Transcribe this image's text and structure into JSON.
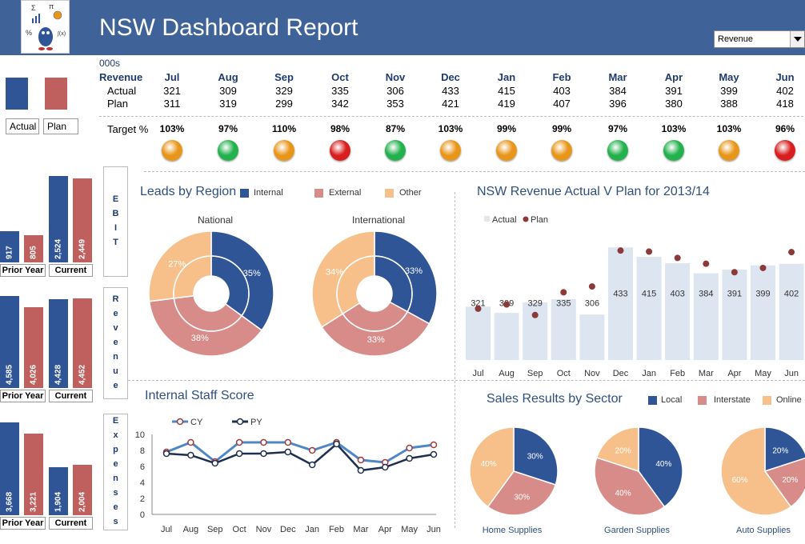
{
  "header": {
    "title": "NSW Dashboard Report",
    "dropdown_value": "Revenue",
    "logo_symbols": [
      "Σ",
      "π",
      "%",
      "∫(x)"
    ]
  },
  "colors": {
    "header_bg": "#3F6298",
    "actual_blue": "#2F5597",
    "plan_red": "#C0605E",
    "internal": "#2F5597",
    "external": "#D88C8A",
    "other": "#F7C08A",
    "bar_light": "#DDE5F0",
    "amber": "#E8961A",
    "green": "#22B14C",
    "red": "#D81E1E"
  },
  "table": {
    "units": "000s",
    "revenue_label": "Revenue",
    "actual_label": "Actual",
    "plan_label": "Plan",
    "target_label": "Target %",
    "months": [
      "Jul",
      "Aug",
      "Sep",
      "Oct",
      "Nov",
      "Dec",
      "Jan",
      "Feb",
      "Mar",
      "Apr",
      "May",
      "Jun"
    ],
    "actual": [
      "321",
      "309",
      "329",
      "335",
      "306",
      "433",
      "415",
      "403",
      "384",
      "391",
      "399",
      "402"
    ],
    "plan": [
      "311",
      "319",
      "299",
      "342",
      "353",
      "421",
      "419",
      "407",
      "396",
      "380",
      "388",
      "418"
    ],
    "target": [
      "103%",
      "97%",
      "110%",
      "98%",
      "87%",
      "103%",
      "99%",
      "99%",
      "97%",
      "103%",
      "103%",
      "96%"
    ],
    "status": [
      "amber",
      "green",
      "amber",
      "red",
      "green",
      "amber",
      "amber",
      "amber",
      "green",
      "green",
      "amber",
      "red"
    ]
  },
  "legend": {
    "actual": "Actual",
    "plan": "Plan"
  },
  "kpis": [
    {
      "side_label": "EBIT",
      "prior_value": "917",
      "current_actual": "2,524",
      "current_plan": "2,449",
      "prior_plan": "805",
      "prior_label": "Prior Year",
      "current_label": "Current"
    },
    {
      "side_label": "Revenue",
      "prior_value": "4,585",
      "prior_plan": "4,026",
      "current_actual": "4,428",
      "current_plan": "4,452",
      "prior_label": "Prior Year",
      "current_label": "Current"
    },
    {
      "side_label": "Expenses",
      "prior_value": "3,668",
      "prior_plan": "3,221",
      "current_actual": "1,904",
      "current_plan": "2,004",
      "prior_label": "Prior Year",
      "current_label": "Current"
    }
  ],
  "leads": {
    "title": "Leads by Region",
    "legend": [
      "Internal",
      "External",
      "Other"
    ],
    "charts": [
      {
        "label": "National",
        "slices": [
          35,
          38,
          27
        ],
        "labels": [
          "35%",
          "38%",
          "27%"
        ]
      },
      {
        "label": "International",
        "slices": [
          33,
          33,
          34
        ],
        "labels": [
          "33%",
          "33%",
          "34%"
        ]
      }
    ]
  },
  "chart_data": [
    {
      "type": "bar",
      "title": "NSW Revenue Actual V Plan for 2013/14",
      "categories": [
        "Jul",
        "Aug",
        "Sep",
        "Oct",
        "Nov",
        "Dec",
        "Jan",
        "Feb",
        "Mar",
        "Apr",
        "May",
        "Jun"
      ],
      "series": [
        {
          "name": "Actual",
          "values": [
            321,
            309,
            329,
            335,
            306,
            433,
            415,
            403,
            384,
            391,
            399,
            402
          ]
        },
        {
          "name": "Plan",
          "values": [
            311,
            319,
            299,
            342,
            353,
            421,
            419,
            407,
            396,
            380,
            388,
            418
          ]
        }
      ],
      "ylim": [
        220,
        450
      ]
    },
    {
      "type": "line",
      "title": "Internal Staff Score",
      "categories": [
        "Jul",
        "Aug",
        "Sep",
        "Oct",
        "Nov",
        "Dec",
        "Jan",
        "Feb",
        "Mar",
        "Apr",
        "May",
        "Jun"
      ],
      "series": [
        {
          "name": "CY",
          "values": [
            7.8,
            9.0,
            6.6,
            9.0,
            9.0,
            9.0,
            8.0,
            9.0,
            6.8,
            6.5,
            8.3,
            8.7
          ]
        },
        {
          "name": "PY",
          "values": [
            7.6,
            7.4,
            6.4,
            7.6,
            7.6,
            7.8,
            6.2,
            8.8,
            5.5,
            5.9,
            7.0,
            7.5
          ]
        }
      ],
      "ylim": [
        0,
        10
      ],
      "yticks": [
        "0",
        "2",
        "4",
        "6",
        "8",
        "10"
      ]
    },
    {
      "type": "pie",
      "title": "Sales Results by Sector",
      "legend": [
        "Local",
        "Interstate",
        "Online"
      ],
      "charts": [
        {
          "label": "Home Supplies",
          "slices": [
            30,
            30,
            40
          ],
          "labels": [
            "30%",
            "30%",
            "40%"
          ]
        },
        {
          "label": "Garden Supplies",
          "slices": [
            40,
            40,
            20
          ],
          "labels": [
            "40%",
            "40%",
            "20%"
          ]
        },
        {
          "label": "Auto Supplies",
          "slices": [
            20,
            20,
            60
          ],
          "labels": [
            "20%",
            "20%",
            "60%"
          ]
        }
      ]
    }
  ]
}
